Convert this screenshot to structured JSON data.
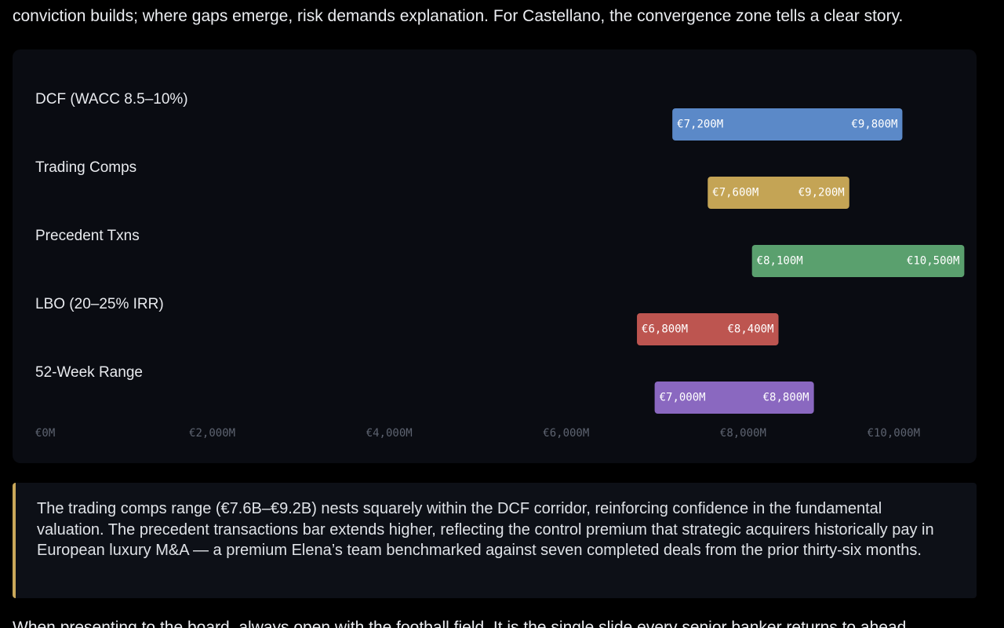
{
  "intro_text": "conviction builds; where gaps emerge, risk demands explanation. For Castellano, the convergence zone tells a clear story.",
  "chart_data": {
    "type": "bar",
    "orientation": "horizontal-range",
    "title": "",
    "xlabel": "",
    "ylabel": "",
    "xlim": [
      0,
      10000
    ],
    "x_ticks": [
      {
        "value": 0,
        "label": "€0M"
      },
      {
        "value": 2000,
        "label": "€2,000M"
      },
      {
        "value": 4000,
        "label": "€4,000M"
      },
      {
        "value": 6000,
        "label": "€6,000M"
      },
      {
        "value": 8000,
        "label": "€8,000M"
      },
      {
        "value": 10000,
        "label": "€10,000M"
      }
    ],
    "grid": false,
    "legend": "none",
    "series": [
      {
        "category": "DCF (WACC 8.5–10%)",
        "low": 7200,
        "high": 9800,
        "low_label": "€7,200M",
        "high_label": "€9,800M",
        "color": "#5b89c8"
      },
      {
        "category": "Trading Comps",
        "low": 7600,
        "high": 9200,
        "low_label": "€7,600M",
        "high_label": "€9,200M",
        "color": "#c4a455"
      },
      {
        "category": "Precedent Txns",
        "low": 8100,
        "high": 10500,
        "low_label": "€8,100M",
        "high_label": "€10,500M",
        "color": "#5aa06e"
      },
      {
        "category": "LBO (20–25% IRR)",
        "low": 6800,
        "high": 8400,
        "low_label": "€6,800M",
        "high_label": "€8,400M",
        "color": "#bd5550"
      },
      {
        "category": "52-Week Range",
        "low": 7000,
        "high": 8800,
        "low_label": "€7,000M",
        "high_label": "€8,800M",
        "color": "#8a68c0"
      }
    ]
  },
  "callout_text": "The trading comps range (€7.6B–€9.2B) nests squarely within the DCF corridor, reinforcing confidence in the fundamental valuation. The precedent transactions bar extends higher, reflecting the control premium that strategic acquirers historically pay in European luxury M&A — a premium Elena’s team benchmarked against seven completed deals from the prior thirty-six months.",
  "outro_text": "When presenting to the board, always open with the football field. It is the single slide every senior banker returns to ahead"
}
